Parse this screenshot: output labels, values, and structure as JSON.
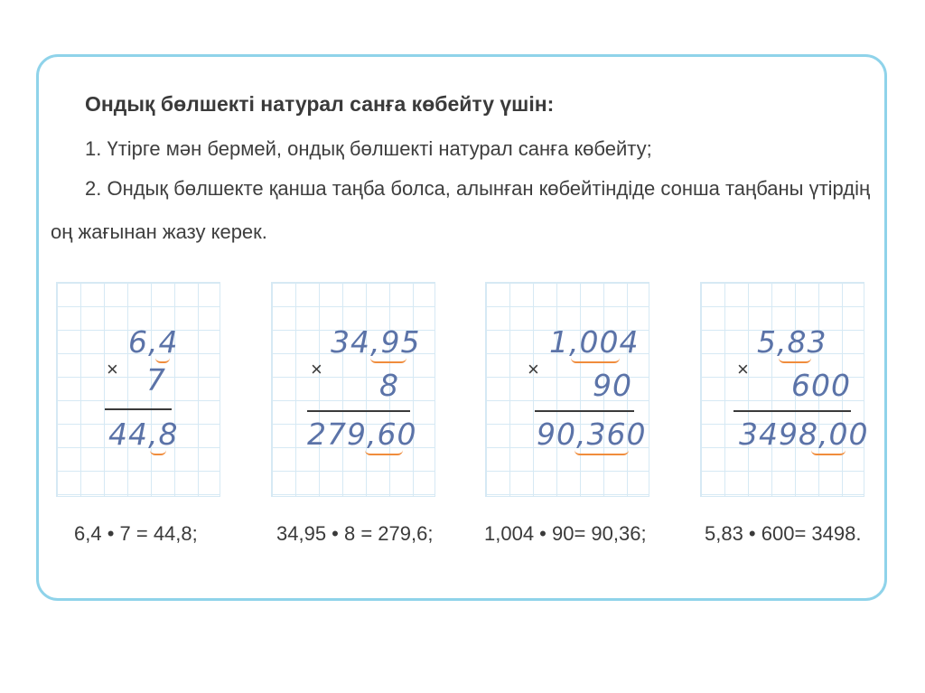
{
  "rule": {
    "title": "Ондық бөлшекті натурал санға көбейту үшін:",
    "step1": "1. Үтірге мән бермей, ондық бөлшекті натурал санға көбейту;",
    "step2_line1": "2. Ондық бөлшекте қанша таңба болса, алынған көбейтіндіде сонша таңбаны үтірдің",
    "step2_line2": "оң жағынан жазу керек."
  },
  "examples": [
    {
      "multiplicand": "6,4",
      "multiplier": "7",
      "product": "44,8",
      "sign": "×",
      "equation": "6,4 • 7 = 44,8;"
    },
    {
      "multiplicand": "34,95",
      "multiplier": "8",
      "product": "279,60",
      "sign": "×",
      "equation": "34,95 • 8 = 279,6;"
    },
    {
      "multiplicand": "1,004",
      "multiplier": "90",
      "product": "90,360",
      "sign": "×",
      "equation": "1,004 • 90= 90,36;"
    },
    {
      "multiplicand": "5,83",
      "multiplier": "600",
      "product": "3498,00",
      "sign": "×",
      "equation": "5,83 • 600= 3498."
    }
  ],
  "colors": {
    "frame_border": "#8fd3ea",
    "handwriting": "#5b73a8",
    "underline_accent": "#f08c3c",
    "grid_lines": "#d6e9f4"
  }
}
